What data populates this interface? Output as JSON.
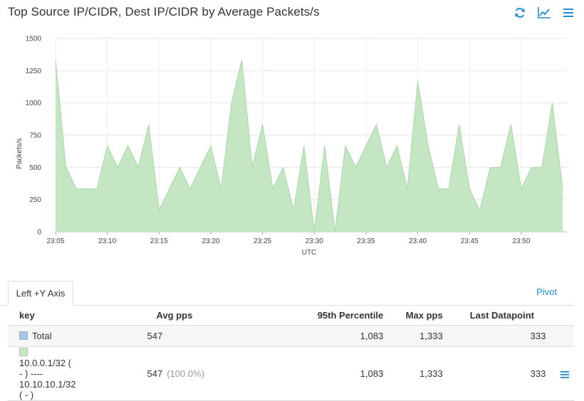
{
  "header": {
    "title": "Top Source IP/CIDR, Dest IP/CIDR by Average Packets/s",
    "icons": [
      "refresh-icon",
      "line-chart-icon",
      "menu-icon"
    ]
  },
  "colors": {
    "accent": "#1f8dd6",
    "series_fill": "#c4e6c3",
    "series_line": "#a7d8a6",
    "total_swatch": "#a6c8e8"
  },
  "chart_data": {
    "type": "area",
    "title": "",
    "xlabel": "UTC",
    "ylabel": "Packets/s",
    "ylim": [
      0,
      1500
    ],
    "yticks": [
      0,
      250,
      500,
      750,
      1000,
      1250,
      1500
    ],
    "ytick_labels": [
      "0",
      "250",
      "500",
      "750",
      "1000",
      "1250",
      "1500"
    ],
    "xticks": [
      "23:05",
      "23:10",
      "23:15",
      "23:20",
      "23:25",
      "23:30",
      "23:35",
      "23:40",
      "23:45",
      "23:50"
    ],
    "grid": true,
    "series": [
      {
        "name": "10.0.0.1/32 ( - ) ---- 10.10.10.1/32 ( - )",
        "x": [
          "23:05",
          "23:06",
          "23:07",
          "23:08",
          "23:09",
          "23:10",
          "23:11",
          "23:12",
          "23:13",
          "23:14",
          "23:15",
          "23:16",
          "23:17",
          "23:18",
          "23:19",
          "23:20",
          "23:21",
          "23:22",
          "23:23",
          "23:24",
          "23:25",
          "23:26",
          "23:27",
          "23:28",
          "23:29",
          "23:30",
          "23:31",
          "23:32",
          "23:33",
          "23:34",
          "23:35",
          "23:36",
          "23:37",
          "23:38",
          "23:39",
          "23:40",
          "23:41",
          "23:42",
          "23:43",
          "23:44",
          "23:45",
          "23:46",
          "23:47",
          "23:48",
          "23:49",
          "23:50",
          "23:51",
          "23:52",
          "23:53",
          "23:54"
        ],
        "values": [
          1333,
          500,
          333,
          333,
          333,
          667,
          500,
          667,
          500,
          833,
          167,
          333,
          500,
          333,
          500,
          667,
          333,
          1000,
          1333,
          500,
          833,
          333,
          500,
          167,
          667,
          0,
          667,
          0,
          667,
          500,
          667,
          833,
          500,
          667,
          333,
          1167,
          667,
          333,
          333,
          833,
          333,
          167,
          500,
          500,
          833,
          333,
          500,
          500,
          1000,
          333
        ]
      }
    ]
  },
  "tabs": {
    "active_label": "Left +Y Axis",
    "pivot_label": "Pivot"
  },
  "legend": {
    "columns": [
      "key",
      "Avg pps",
      "95th Percentile",
      "Max pps",
      "Last Datapoint"
    ],
    "rows": [
      {
        "key": "Total",
        "avg": "547",
        "pct": "",
        "p95": "1,083",
        "max": "1,333",
        "last": "333",
        "swatch": "#a6c8e8",
        "menu": false
      },
      {
        "key": "10.0.0.1/32 ( - ) ---- 10.10.10.1/32 ( - )",
        "avg": "547",
        "pct": "(100.0%)",
        "p95": "1,083",
        "max": "1,333",
        "last": "333",
        "swatch": "#c4e6c3",
        "menu": true
      }
    ]
  }
}
